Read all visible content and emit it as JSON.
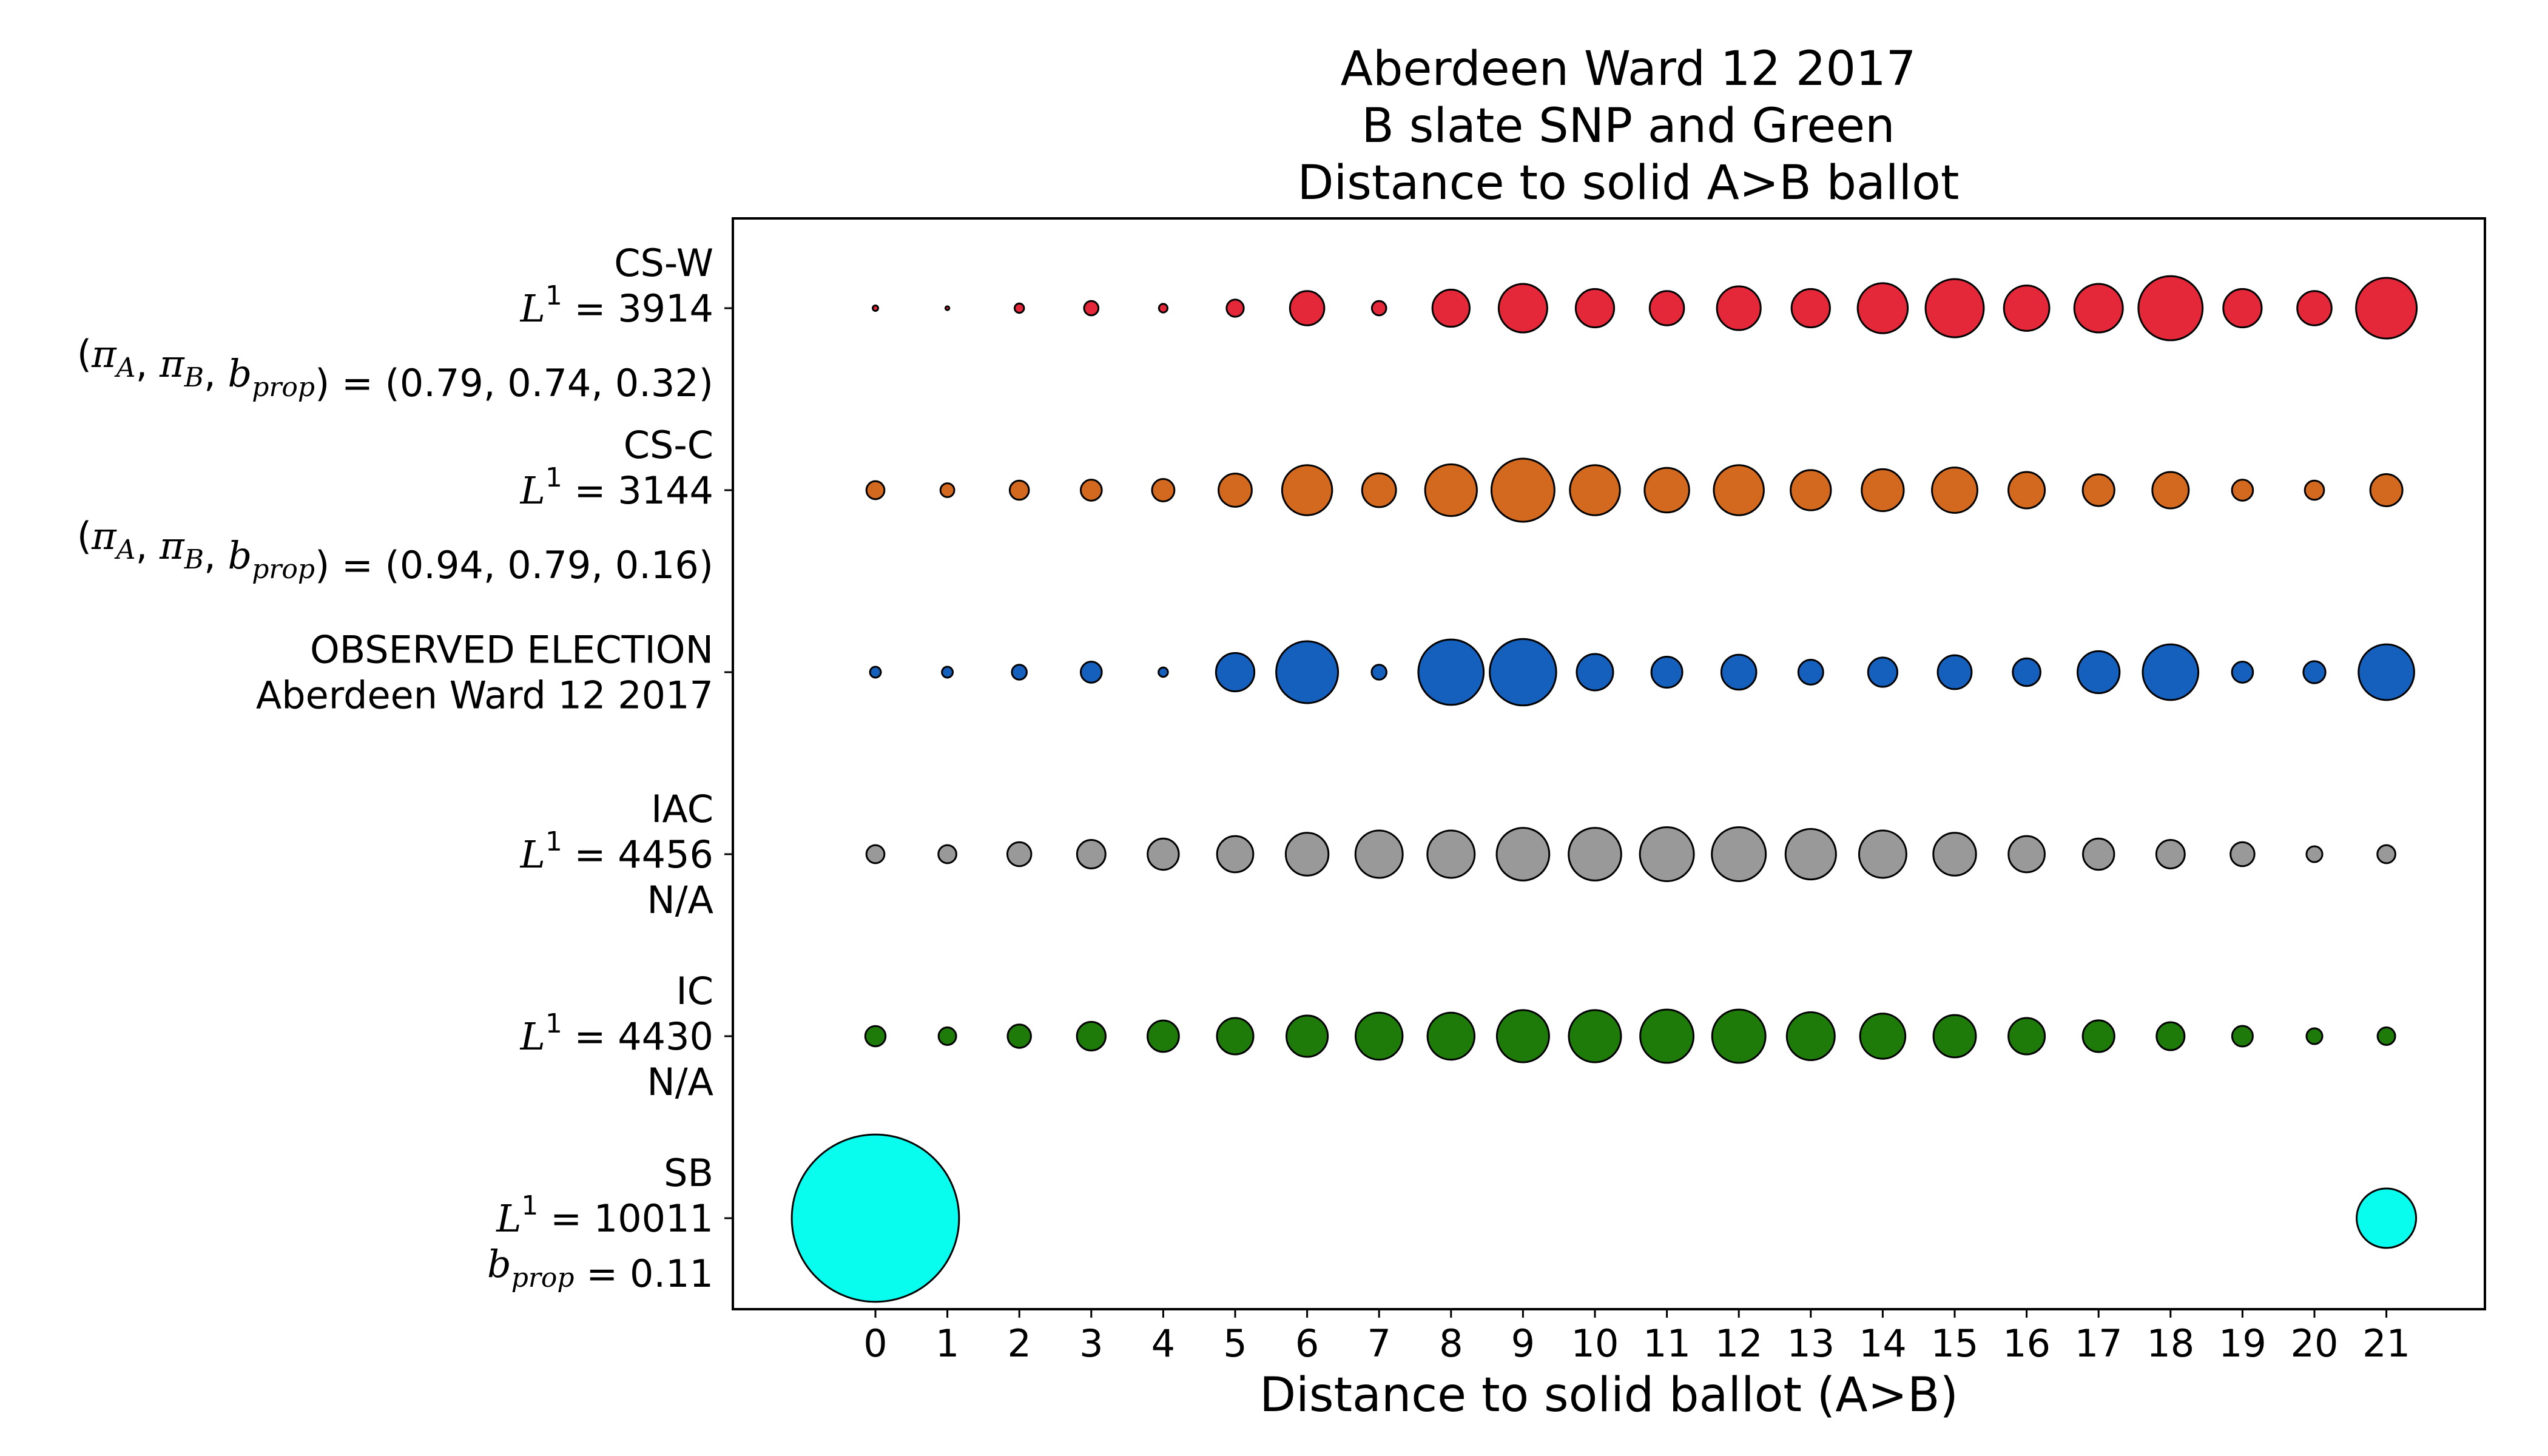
{
  "chart_data": {
    "type": "scatter",
    "title_lines": [
      "Aberdeen Ward 12 2017",
      "B slate SNP and Green",
      "Distance to solid A>B ballot"
    ],
    "xlabel": "Distance to solid ballot (A>B)",
    "ylabel": "",
    "x_ticks": [
      0,
      1,
      2,
      3,
      4,
      5,
      6,
      7,
      8,
      9,
      10,
      11,
      12,
      13,
      14,
      15,
      16,
      17,
      18,
      19,
      20,
      21
    ],
    "x_range": [
      -1.9,
      22.1
    ],
    "marker_size_encodes": "share of ballots at each distance (relative)",
    "series": [
      {
        "id": "cs-w",
        "color": "#e4283a",
        "label_lines": [
          {
            "text": "CS-W"
          },
          {
            "prefix": "L",
            "sup": "1",
            "suffix": " = 3914"
          },
          {
            "params": "(π_A, π_B, b_prop) = (0.79, 0.74, 0.32)",
            "value": " = (0.79, 0.74, 0.32)"
          }
        ],
        "values": [
          0.2,
          0.1,
          0.6,
          1.4,
          0.5,
          2.0,
          8.0,
          1.4,
          9.4,
          16.0,
          10.0,
          8.0,
          13.0,
          10.0,
          17.0,
          23.0,
          14.0,
          16.0,
          28.0,
          10.0,
          8.0,
          25.0
        ]
      },
      {
        "id": "cs-c",
        "color": "#d2691e",
        "label_lines": [
          {
            "text": "CS-C"
          },
          {
            "prefix": "L",
            "sup": "1",
            "suffix": " = 3144"
          },
          {
            "params": "(π_A, π_B, b_prop) = (0.94, 0.79, 0.16)",
            "value": " = (0.94, 0.79, 0.16)"
          }
        ],
        "values": [
          2.2,
          1.3,
          2.5,
          3.0,
          3.4,
          7.5,
          17.0,
          7.8,
          18.2,
          27.0,
          17.0,
          13.5,
          17.0,
          11.0,
          12.0,
          14.0,
          9.0,
          6.8,
          9.0,
          3.0,
          2.5,
          7.0
        ]
      },
      {
        "id": "observed",
        "color": "#1560bd",
        "label_lines": [
          {
            "text": "OBSERVED ELECTION"
          },
          {
            "text": "Aberdeen Ward 12 2017"
          }
        ],
        "values": [
          0.8,
          0.8,
          1.5,
          3.0,
          0.6,
          10.0,
          26.0,
          1.5,
          29.0,
          30.0,
          9.0,
          6.5,
          8.3,
          4.2,
          5.8,
          7.8,
          5.2,
          12.0,
          21.0,
          3.0,
          3.3,
          21.0
        ]
      },
      {
        "id": "iac",
        "color": "#999999",
        "label_lines": [
          {
            "text": "IAC"
          },
          {
            "prefix": "L",
            "sup": "1",
            "suffix": " = 4456"
          },
          {
            "text": "N/A"
          }
        ],
        "values": [
          2.2,
          2.2,
          3.9,
          5.5,
          6.6,
          8.9,
          12.4,
          15.2,
          15.2,
          18.8,
          18.8,
          19.8,
          19.8,
          17.3,
          15.2,
          12.4,
          8.9,
          6.6,
          5.5,
          3.9,
          1.7,
          2.2
        ]
      },
      {
        "id": "ic",
        "color": "#1e7b0a",
        "label_lines": [
          {
            "text": "IC"
          },
          {
            "prefix": "L",
            "sup": "1",
            "suffix": " = 4430"
          },
          {
            "text": "N/A"
          }
        ],
        "values": [
          2.8,
          2.1,
          3.7,
          5.6,
          6.7,
          9.0,
          11.6,
          15.0,
          15.0,
          18.5,
          18.5,
          19.3,
          19.3,
          15.6,
          13.9,
          12.2,
          9.0,
          6.8,
          5.3,
          2.9,
          1.7,
          2.1
        ]
      },
      {
        "id": "sb",
        "color": "#08fdef",
        "label_lines": [
          {
            "text": "SB"
          },
          {
            "prefix": "L",
            "sup": "1",
            "suffix": " = 10011"
          },
          {
            "params": "b_prop = 0.11",
            "value": " = 0.11"
          }
        ],
        "values": [
          190,
          0,
          0,
          0,
          0,
          0,
          0,
          0,
          0,
          0,
          0,
          0,
          0,
          0,
          0,
          0,
          0,
          0,
          0,
          0,
          0,
          24
        ]
      }
    ],
    "grid": false,
    "legend": "none"
  }
}
